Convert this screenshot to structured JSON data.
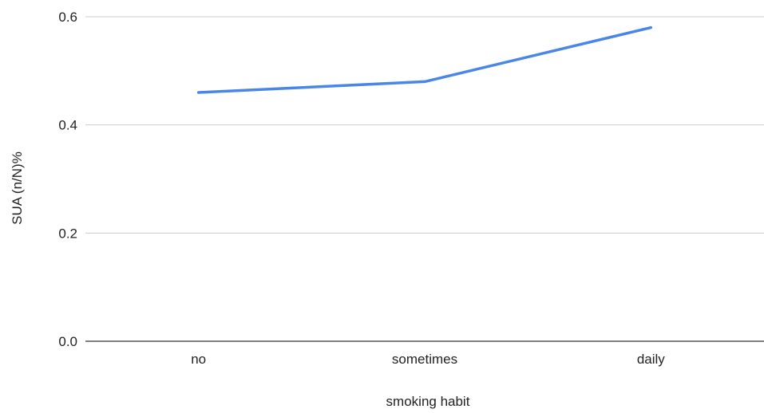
{
  "chart_data": {
    "type": "line",
    "title": "",
    "xlabel": "smoking habit",
    "ylabel": "SUA (n/N)%",
    "categories": [
      "no",
      "sometimes",
      "daily"
    ],
    "series": [
      {
        "values": [
          0.46,
          0.48,
          0.58
        ],
        "color": "#4a86e8"
      }
    ],
    "ylim": [
      0,
      0.6
    ],
    "yticks": [
      "0.0",
      "0.2",
      "0.4",
      "0.6"
    ],
    "grid": true,
    "legend": "none"
  }
}
